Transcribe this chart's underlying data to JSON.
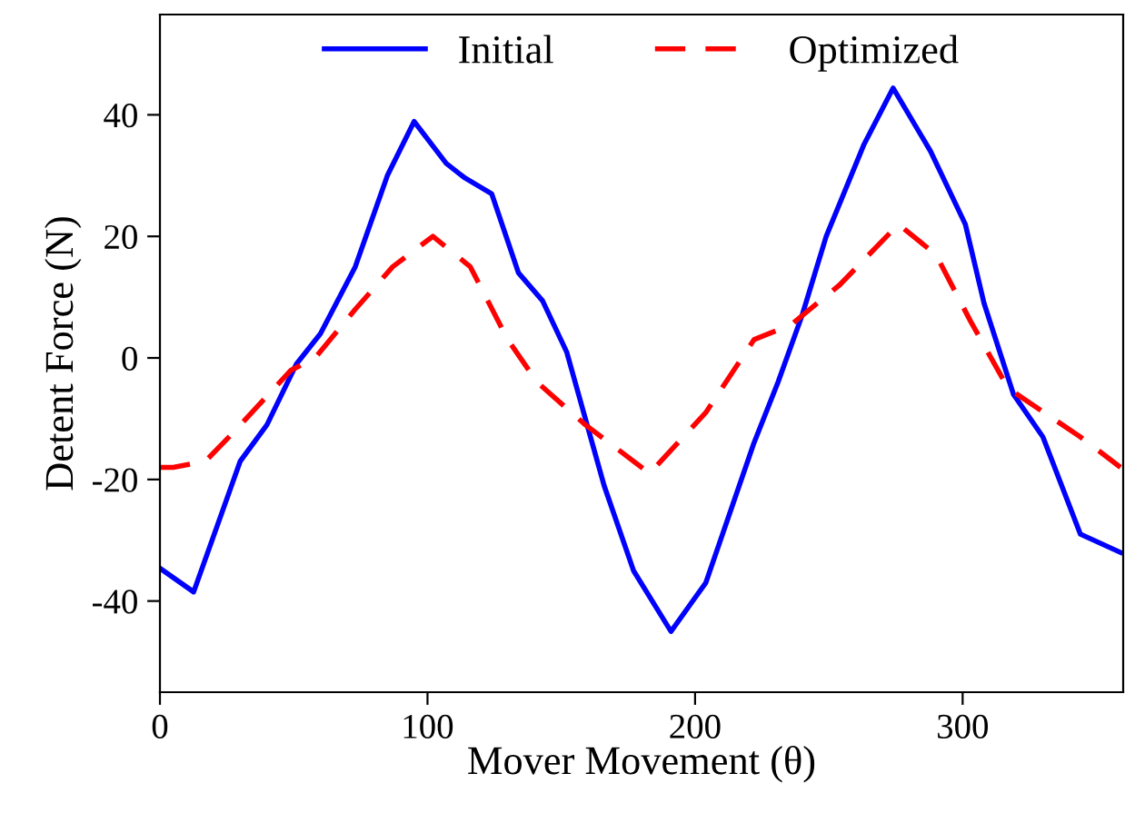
{
  "chart_data": {
    "type": "line",
    "xlabel": "Mover Movement (θ)",
    "ylabel": "Detent Force (N)",
    "xlim": [
      0,
      360
    ],
    "xticks": [
      0,
      100,
      200,
      300
    ],
    "ylim": [
      -55,
      56.5
    ],
    "yticks": [
      -40,
      -20,
      0,
      20,
      40
    ],
    "grid": false,
    "legend": "top",
    "marker": "none",
    "series": [
      {
        "name": "Initial",
        "color": "#0000ff",
        "line_style": "solid",
        "x": [
          0,
          12.6,
          30,
          40,
          51,
          60,
          73,
          85,
          95,
          107,
          114,
          124,
          134,
          143,
          152,
          166,
          177,
          191,
          204,
          222,
          231,
          240,
          249,
          263,
          274,
          288,
          301,
          308,
          319,
          330,
          344,
          359
        ],
        "values": [
          -34.6,
          -38.5,
          -17,
          -11,
          -1,
          4,
          15,
          30,
          38.9,
          32,
          29.6,
          27,
          14,
          9.4,
          1,
          -21,
          -35,
          -45,
          -37,
          -14,
          -4,
          7,
          20,
          35,
          44.4,
          34,
          22,
          9,
          -6,
          -13,
          -29,
          -32
        ]
      },
      {
        "name": "Optimized",
        "color": "#ff0000",
        "line_style": "dashed",
        "x": [
          0,
          5,
          17,
          28,
          49,
          58,
          73,
          87,
          102,
          116,
          130,
          141,
          159,
          183,
          204,
          222,
          236,
          254,
          276,
          290,
          303,
          317,
          344,
          359
        ],
        "values": [
          -18,
          -18,
          -17,
          -12,
          -2,
          0,
          8,
          15,
          20,
          15,
          3,
          -4,
          -11,
          -19,
          -9,
          3,
          5.5,
          12,
          22,
          17,
          6,
          -5,
          -13,
          -18
        ]
      }
    ]
  }
}
